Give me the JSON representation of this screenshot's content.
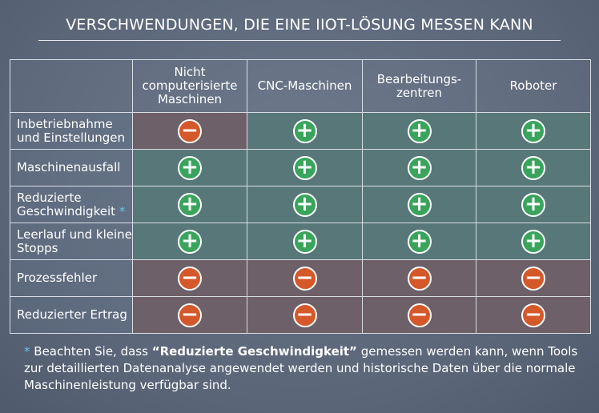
{
  "title": "VERSCHWENDUNGEN, DIE EINE IIOT-LÖSUNG MESSEN KANN",
  "table": {
    "columns": [
      "Nicht computerisierte Maschinen",
      "CNC-Maschinen",
      "Bearbeitungs-zentren",
      "Roboter"
    ],
    "rows": [
      {
        "label": "Inbetriebnahme und Einstellungen",
        "cells": [
          "−",
          "+",
          "+",
          "+"
        ]
      },
      {
        "label": "Maschinenausfall",
        "cells": [
          "+",
          "+",
          "+",
          "+"
        ]
      },
      {
        "label": "Reduzierte Geschwindigkeit",
        "marker": "*",
        "cells": [
          "+",
          "+",
          "+",
          "+"
        ]
      },
      {
        "label": "Leerlauf und kleine Stopps",
        "cells": [
          "+",
          "+",
          "+",
          "+"
        ]
      },
      {
        "label": "Prozessfehler",
        "cells": [
          "−",
          "−",
          "−",
          "−"
        ]
      },
      {
        "label": "Reduzierter Ertrag",
        "cells": [
          "−",
          "−",
          "−",
          "−"
        ]
      }
    ]
  },
  "note": {
    "marker": "*",
    "before": "Beachten Sie, dass",
    "bold": "“Reduzierte Geschwindigkeit”",
    "after": "gemessen werden kann, wenn Tools zur detaillierten Datenanalyse angewendet werden und historische Daten über die normale Maschinenleistung verfügbar sind."
  }
}
